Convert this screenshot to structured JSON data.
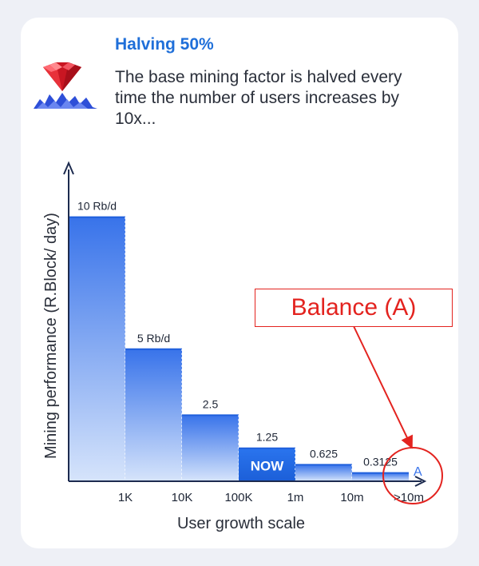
{
  "header": {
    "title": "Halving 50%",
    "description": "The base mining factor is halved every time the number of users increases by 10x..."
  },
  "annotation": {
    "label": "Balance (A)",
    "color": "#e3231f"
  },
  "colors": {
    "bar_top": "#2f6de6",
    "bar_bottom": "#d9e6fb",
    "now_bar": "#1f6fe6",
    "axis": "#1d2b4f"
  },
  "chart_data": {
    "type": "bar",
    "title": "",
    "xlabel": "User growth scale",
    "ylabel": "Mining performance (R.Block/ day)",
    "x_ticks": [
      "1K",
      "10K",
      "100K",
      "1m",
      "10m",
      ">10m"
    ],
    "bars": [
      {
        "range": "0–1K",
        "value": 10,
        "label": "10 Rb/d"
      },
      {
        "range": "1K–10K",
        "value": 5,
        "label": "5 Rb/d"
      },
      {
        "range": "10K–100K",
        "value": 2.5,
        "label": "2.5"
      },
      {
        "range": "100K–1m",
        "value": 1.25,
        "label": "1.25",
        "highlight": "NOW"
      },
      {
        "range": "1m–10m",
        "value": 0.625,
        "label": "0.625"
      },
      {
        "range": "10m–>10m",
        "value": 0.3125,
        "label": "0.3125"
      }
    ],
    "end_marker": "A",
    "ylim": [
      0,
      11.5
    ]
  }
}
